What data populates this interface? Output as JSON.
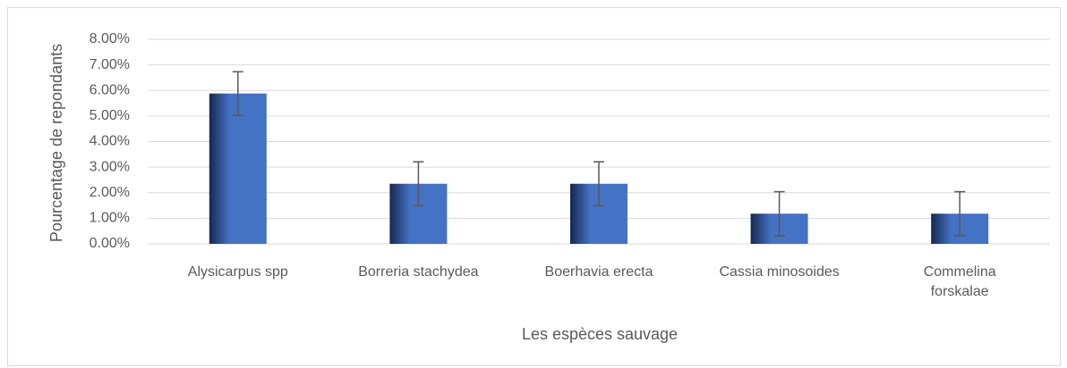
{
  "chart_data": {
    "type": "bar",
    "categories": [
      "Alysicarpus spp",
      "Borreria stachydea",
      "Boerhavia erecta",
      "Cassia minosoides",
      "Commelina forskalae"
    ],
    "values": [
      5.88,
      2.35,
      2.35,
      1.18,
      1.18
    ],
    "errors": [
      0.85,
      0.86,
      0.86,
      0.86,
      0.86
    ],
    "color": "#4472c4",
    "xlabel": "Les espèces sauvage",
    "ylabel": "Pourcentage de repondants",
    "ylim": [
      0,
      8
    ],
    "yticks": [
      {
        "value": 0,
        "label": "0.00%"
      },
      {
        "value": 1,
        "label": "1.00%"
      },
      {
        "value": 2,
        "label": "2.00%"
      },
      {
        "value": 3,
        "label": "3.00%"
      },
      {
        "value": 4,
        "label": "4.00%"
      },
      {
        "value": 5,
        "label": "5.00%"
      },
      {
        "value": 6,
        "label": "6.00%"
      },
      {
        "value": 7,
        "label": "7.00%"
      },
      {
        "value": 8,
        "label": "8.00%"
      }
    ],
    "grid": true
  }
}
